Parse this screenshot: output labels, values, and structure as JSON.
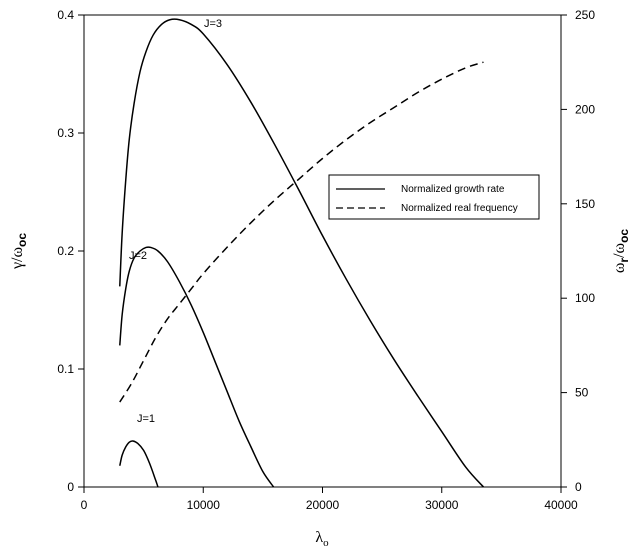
{
  "chart_data": {
    "type": "line",
    "xlabel": {
      "symbol": "λ",
      "subscript": "o"
    },
    "ylabel_left": {
      "symbol": "γ/ω",
      "subscript": "oc"
    },
    "ylabel_right": {
      "symbol": "ω",
      "sub1": "r",
      "mid": "/ω",
      "sub2": "oc"
    },
    "xlim": [
      0,
      40000
    ],
    "ylim_left": [
      0,
      0.4
    ],
    "ylim_right": [
      0,
      250
    ],
    "x_ticks": [
      0,
      10000,
      20000,
      30000,
      40000
    ],
    "y_left_ticks": [
      0,
      0.1,
      0.2,
      0.3,
      0.4
    ],
    "y_right_ticks": [
      0,
      50,
      100,
      150,
      200,
      250
    ],
    "legend": {
      "placement": "right-middle",
      "entries": [
        {
          "label": "Normalized growth rate",
          "style": "solid"
        },
        {
          "label": "Normalized real frequency",
          "style": "dashed"
        }
      ]
    },
    "series": [
      {
        "label": "J=1",
        "axis": "left",
        "style": "solid",
        "x": [
          3000,
          3200,
          3500,
          3800,
          4100,
          4500,
          5000,
          5500,
          6000,
          6200
        ],
        "y": [
          0.018,
          0.027,
          0.034,
          0.038,
          0.039,
          0.037,
          0.031,
          0.02,
          0.006,
          0.0
        ]
      },
      {
        "label": "J=2",
        "axis": "left",
        "style": "solid",
        "x": [
          3000,
          3200,
          3500,
          3800,
          4200,
          4700,
          5200,
          5600,
          6200,
          7000,
          8000,
          9000,
          10000,
          11000,
          12000,
          13000,
          14000,
          15000,
          15900
        ],
        "y": [
          0.12,
          0.146,
          0.168,
          0.183,
          0.194,
          0.2,
          0.203,
          0.203,
          0.2,
          0.191,
          0.174,
          0.154,
          0.131,
          0.106,
          0.081,
          0.056,
          0.034,
          0.013,
          0.0
        ]
      },
      {
        "label": "J=3",
        "axis": "left",
        "style": "solid",
        "x": [
          3000,
          3200,
          3500,
          3800,
          4200,
          4700,
          5200,
          5800,
          6500,
          7200,
          8000,
          9000,
          10000,
          12000,
          14000,
          16000,
          18000,
          20000,
          22000,
          24000,
          26000,
          28000,
          30000,
          32000,
          33500
        ],
        "y": [
          0.17,
          0.215,
          0.26,
          0.295,
          0.325,
          0.352,
          0.369,
          0.383,
          0.392,
          0.396,
          0.396,
          0.392,
          0.384,
          0.358,
          0.326,
          0.29,
          0.252,
          0.213,
          0.176,
          0.141,
          0.108,
          0.077,
          0.047,
          0.017,
          0.0
        ]
      },
      {
        "label": "Normalized real frequency",
        "axis": "right",
        "style": "dashed",
        "x": [
          3000,
          4000,
          5000,
          6000,
          7000,
          8000,
          9000,
          10000,
          12000,
          14000,
          16000,
          18000,
          20000,
          22000,
          24000,
          26000,
          28000,
          30000,
          32000,
          33500
        ],
        "y": [
          45,
          55,
          67,
          79,
          89,
          97,
          105,
          113,
          127,
          140,
          152,
          163,
          174,
          184,
          193,
          201,
          209,
          216,
          222,
          225
        ]
      }
    ]
  }
}
